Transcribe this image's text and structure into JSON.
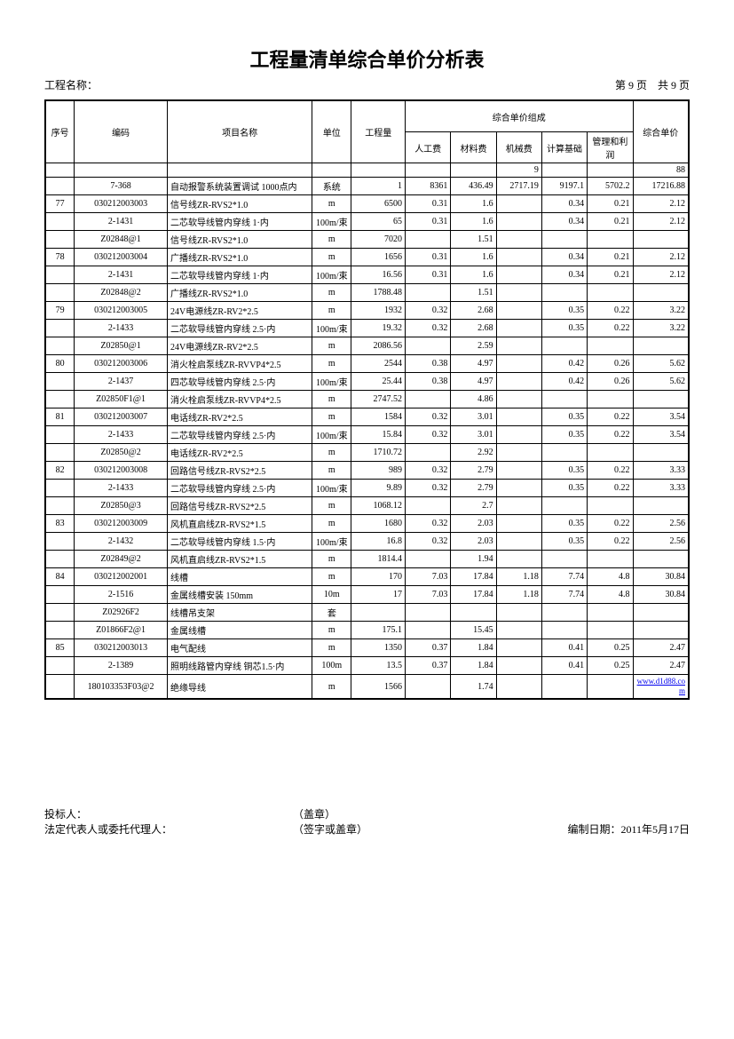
{
  "title": "工程量清单综合单价分析表",
  "project_label": "工程名称：",
  "page_info": "第 9 页　共 9 页",
  "headers": {
    "seq": "序号",
    "code": "编码",
    "name": "项目名称",
    "unit": "单位",
    "qty": "工程量",
    "group": "综合单价组成",
    "labor": "人工费",
    "material": "材料费",
    "machine": "机械费",
    "calc_base": "计算基础",
    "mgmt_profit": "管理和利润",
    "unit_price": "综合单价"
  },
  "col_widths": [
    "28",
    "90",
    "140",
    "38",
    "52",
    "44",
    "44",
    "44",
    "44",
    "44",
    "54"
  ],
  "rows": [
    {
      "seq": "",
      "code": "",
      "name": "",
      "unit": "",
      "qty": "",
      "labor": "",
      "material": "",
      "machine": "9",
      "calc": "",
      "mgmt": "",
      "price": "88"
    },
    {
      "seq": "",
      "code": "7-368",
      "name": "自动报警系统装置调试 1000点内",
      "unit": "系统",
      "qty": "1",
      "labor": "8361",
      "material": "436.49",
      "machine": "2717.19",
      "calc": "9197.1",
      "mgmt": "5702.2",
      "price": "17216.88"
    },
    {
      "seq": "77",
      "code": "030212003003",
      "name": "信号线ZR-RVS2*1.0",
      "unit": "m",
      "qty": "6500",
      "labor": "0.31",
      "material": "1.6",
      "machine": "",
      "calc": "0.34",
      "mgmt": "0.21",
      "price": "2.12"
    },
    {
      "seq": "",
      "code": "2-1431",
      "name": "二芯软导线管内穿线 1·内",
      "unit": "100m/束",
      "qty": "65",
      "labor": "0.31",
      "material": "1.6",
      "machine": "",
      "calc": "0.34",
      "mgmt": "0.21",
      "price": "2.12"
    },
    {
      "seq": "",
      "code": "Z02848@1",
      "name": "信号线ZR-RVS2*1.0",
      "unit": "m",
      "qty": "7020",
      "labor": "",
      "material": "1.51",
      "machine": "",
      "calc": "",
      "mgmt": "",
      "price": ""
    },
    {
      "seq": "78",
      "code": "030212003004",
      "name": "广播线ZR-RVS2*1.0",
      "unit": "m",
      "qty": "1656",
      "labor": "0.31",
      "material": "1.6",
      "machine": "",
      "calc": "0.34",
      "mgmt": "0.21",
      "price": "2.12"
    },
    {
      "seq": "",
      "code": "2-1431",
      "name": "二芯软导线管内穿线 1·内",
      "unit": "100m/束",
      "qty": "16.56",
      "labor": "0.31",
      "material": "1.6",
      "machine": "",
      "calc": "0.34",
      "mgmt": "0.21",
      "price": "2.12"
    },
    {
      "seq": "",
      "code": "Z02848@2",
      "name": "广播线ZR-RVS2*1.0",
      "unit": "m",
      "qty": "1788.48",
      "labor": "",
      "material": "1.51",
      "machine": "",
      "calc": "",
      "mgmt": "",
      "price": ""
    },
    {
      "seq": "79",
      "code": "030212003005",
      "name": "24V电源线ZR-RV2*2.5",
      "unit": "m",
      "qty": "1932",
      "labor": "0.32",
      "material": "2.68",
      "machine": "",
      "calc": "0.35",
      "mgmt": "0.22",
      "price": "3.22"
    },
    {
      "seq": "",
      "code": "2-1433",
      "name": "二芯软导线管内穿线 2.5·内",
      "unit": "100m/束",
      "qty": "19.32",
      "labor": "0.32",
      "material": "2.68",
      "machine": "",
      "calc": "0.35",
      "mgmt": "0.22",
      "price": "3.22"
    },
    {
      "seq": "",
      "code": "Z02850@1",
      "name": "24V电源线ZR-RV2*2.5",
      "unit": "m",
      "qty": "2086.56",
      "labor": "",
      "material": "2.59",
      "machine": "",
      "calc": "",
      "mgmt": "",
      "price": ""
    },
    {
      "seq": "80",
      "code": "030212003006",
      "name": "消火栓启泵线ZR-RVVP4*2.5",
      "unit": "m",
      "qty": "2544",
      "labor": "0.38",
      "material": "4.97",
      "machine": "",
      "calc": "0.42",
      "mgmt": "0.26",
      "price": "5.62"
    },
    {
      "seq": "",
      "code": "2-1437",
      "name": "四芯软导线管内穿线 2.5·内",
      "unit": "100m/束",
      "qty": "25.44",
      "labor": "0.38",
      "material": "4.97",
      "machine": "",
      "calc": "0.42",
      "mgmt": "0.26",
      "price": "5.62"
    },
    {
      "seq": "",
      "code": "Z02850F1@1",
      "name": "消火栓启泵线ZR-RVVP4*2.5",
      "unit": "m",
      "qty": "2747.52",
      "labor": "",
      "material": "4.86",
      "machine": "",
      "calc": "",
      "mgmt": "",
      "price": ""
    },
    {
      "seq": "81",
      "code": "030212003007",
      "name": "电话线ZR-RV2*2.5",
      "unit": "m",
      "qty": "1584",
      "labor": "0.32",
      "material": "3.01",
      "machine": "",
      "calc": "0.35",
      "mgmt": "0.22",
      "price": "3.54"
    },
    {
      "seq": "",
      "code": "2-1433",
      "name": "二芯软导线管内穿线 2.5·内",
      "unit": "100m/束",
      "qty": "15.84",
      "labor": "0.32",
      "material": "3.01",
      "machine": "",
      "calc": "0.35",
      "mgmt": "0.22",
      "price": "3.54"
    },
    {
      "seq": "",
      "code": "Z02850@2",
      "name": "电话线ZR-RV2*2.5",
      "unit": "m",
      "qty": "1710.72",
      "labor": "",
      "material": "2.92",
      "machine": "",
      "calc": "",
      "mgmt": "",
      "price": ""
    },
    {
      "seq": "82",
      "code": "030212003008",
      "name": "回路信号线ZR-RVS2*2.5",
      "unit": "m",
      "qty": "989",
      "labor": "0.32",
      "material": "2.79",
      "machine": "",
      "calc": "0.35",
      "mgmt": "0.22",
      "price": "3.33"
    },
    {
      "seq": "",
      "code": "2-1433",
      "name": "二芯软导线管内穿线 2.5·内",
      "unit": "100m/束",
      "qty": "9.89",
      "labor": "0.32",
      "material": "2.79",
      "machine": "",
      "calc": "0.35",
      "mgmt": "0.22",
      "price": "3.33"
    },
    {
      "seq": "",
      "code": "Z02850@3",
      "name": "回路信号线ZR-RVS2*2.5",
      "unit": "m",
      "qty": "1068.12",
      "labor": "",
      "material": "2.7",
      "machine": "",
      "calc": "",
      "mgmt": "",
      "price": ""
    },
    {
      "seq": "83",
      "code": "030212003009",
      "name": "风机直启线ZR-RVS2*1.5",
      "unit": "m",
      "qty": "1680",
      "labor": "0.32",
      "material": "2.03",
      "machine": "",
      "calc": "0.35",
      "mgmt": "0.22",
      "price": "2.56"
    },
    {
      "seq": "",
      "code": "2-1432",
      "name": "二芯软导线管内穿线 1.5·内",
      "unit": "100m/束",
      "qty": "16.8",
      "labor": "0.32",
      "material": "2.03",
      "machine": "",
      "calc": "0.35",
      "mgmt": "0.22",
      "price": "2.56"
    },
    {
      "seq": "",
      "code": "Z02849@2",
      "name": "风机直启线ZR-RVS2*1.5",
      "unit": "m",
      "qty": "1814.4",
      "labor": "",
      "material": "1.94",
      "machine": "",
      "calc": "",
      "mgmt": "",
      "price": ""
    },
    {
      "seq": "84",
      "code": "030212002001",
      "name": "线槽",
      "unit": "m",
      "qty": "170",
      "labor": "7.03",
      "material": "17.84",
      "machine": "1.18",
      "calc": "7.74",
      "mgmt": "4.8",
      "price": "30.84"
    },
    {
      "seq": "",
      "code": "2-1516",
      "name": "金属线槽安装 150mm",
      "unit": "10m",
      "qty": "17",
      "labor": "7.03",
      "material": "17.84",
      "machine": "1.18",
      "calc": "7.74",
      "mgmt": "4.8",
      "price": "30.84"
    },
    {
      "seq": "",
      "code": "Z02926F2",
      "name": "线槽吊支架",
      "unit": "套",
      "qty": "",
      "labor": "",
      "material": "",
      "machine": "",
      "calc": "",
      "mgmt": "",
      "price": ""
    },
    {
      "seq": "",
      "code": "Z01866F2@1",
      "name": "金属线槽",
      "unit": "m",
      "qty": "175.1",
      "labor": "",
      "material": "15.45",
      "machine": "",
      "calc": "",
      "mgmt": "",
      "price": ""
    },
    {
      "seq": "85",
      "code": "030212003013",
      "name": "电气配线",
      "unit": "m",
      "qty": "1350",
      "labor": "0.37",
      "material": "1.84",
      "machine": "",
      "calc": "0.41",
      "mgmt": "0.25",
      "price": "2.47"
    },
    {
      "seq": "",
      "code": "2-1389",
      "name": "照明线路管内穿线 铜芯1.5·内",
      "unit": "100m",
      "qty": "13.5",
      "labor": "0.37",
      "material": "1.84",
      "machine": "",
      "calc": "0.41",
      "mgmt": "0.25",
      "price": "2.47"
    },
    {
      "seq": "",
      "code": "180103353F03@2",
      "name": "绝缘导线",
      "unit": "m",
      "qty": "1566",
      "labor": "",
      "material": "1.74",
      "machine": "",
      "calc": "",
      "mgmt": "",
      "price": "",
      "link": "www.d1d88.com"
    }
  ],
  "footer": {
    "bidder": "投标人：",
    "legal": "法定代表人或委托代理人：",
    "stamp1": "（盖章）",
    "stamp2": "（签字或盖章）",
    "date": "编制日期：2011年5月17日"
  }
}
